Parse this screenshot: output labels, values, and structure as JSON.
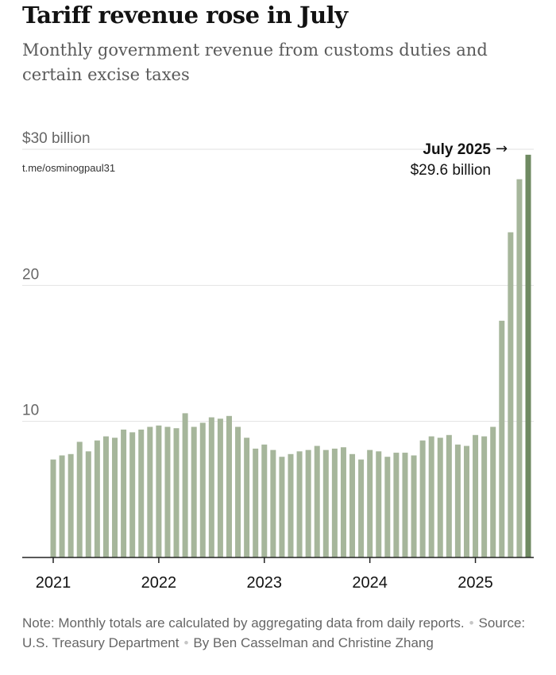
{
  "title": "Tariff revenue rose in July",
  "subtitle": "Monthly government revenue from customs duties and certain excise taxes",
  "watermark": "t.me/osminogpaul31",
  "note": {
    "text": "Note: Monthly totals are calculated by aggregating data from daily reports.",
    "source": "Source: U.S. Treasury Department",
    "byline": "By Ben Casselman and Christine Zhang"
  },
  "colors": {
    "bar": "#a6b69b",
    "highlight": "#6f8a62",
    "grid": "#e2e2e2",
    "axis": "#222222",
    "text": "#121212",
    "muted": "#666666"
  },
  "chart_data": {
    "type": "bar",
    "title": "Tariff revenue rose in July",
    "ylabel": "",
    "xlabel": "",
    "ylim": [
      0,
      30
    ],
    "y_ticks": [
      {
        "value": 30,
        "label": "$30 billion"
      },
      {
        "value": 20,
        "label": "20"
      },
      {
        "value": 10,
        "label": "10"
      }
    ],
    "x_ticks": [
      {
        "index": 0,
        "label": "2021"
      },
      {
        "index": 12,
        "label": "2022"
      },
      {
        "index": 24,
        "label": "2023"
      },
      {
        "index": 36,
        "label": "2024"
      },
      {
        "index": 48,
        "label": "2025"
      }
    ],
    "unit": "billion dollars",
    "categories": [
      "Jan 2021",
      "Feb 2021",
      "Mar 2021",
      "Apr 2021",
      "May 2021",
      "Jun 2021",
      "Jul 2021",
      "Aug 2021",
      "Sep 2021",
      "Oct 2021",
      "Nov 2021",
      "Dec 2021",
      "Jan 2022",
      "Feb 2022",
      "Mar 2022",
      "Apr 2022",
      "May 2022",
      "Jun 2022",
      "Jul 2022",
      "Aug 2022",
      "Sep 2022",
      "Oct 2022",
      "Nov 2022",
      "Dec 2022",
      "Jan 2023",
      "Feb 2023",
      "Mar 2023",
      "Apr 2023",
      "May 2023",
      "Jun 2023",
      "Jul 2023",
      "Aug 2023",
      "Sep 2023",
      "Oct 2023",
      "Nov 2023",
      "Dec 2023",
      "Jan 2024",
      "Feb 2024",
      "Mar 2024",
      "Apr 2024",
      "May 2024",
      "Jun 2024",
      "Jul 2024",
      "Aug 2024",
      "Sep 2024",
      "Oct 2024",
      "Nov 2024",
      "Dec 2024",
      "Jan 2025",
      "Feb 2025",
      "Mar 2025",
      "Apr 2025",
      "May 2025",
      "Jun 2025",
      "Jul 2025"
    ],
    "values": [
      7.2,
      7.5,
      7.6,
      8.5,
      7.8,
      8.6,
      8.9,
      8.8,
      9.4,
      9.2,
      9.4,
      9.6,
      9.7,
      9.6,
      9.5,
      10.6,
      9.6,
      9.9,
      10.3,
      10.2,
      10.4,
      9.6,
      8.8,
      8.0,
      8.3,
      7.9,
      7.4,
      7.6,
      7.8,
      7.9,
      8.2,
      7.9,
      8.0,
      8.1,
      7.6,
      7.2,
      7.9,
      7.8,
      7.4,
      7.7,
      7.7,
      7.5,
      8.6,
      8.9,
      8.8,
      9.0,
      8.3,
      8.2,
      9.0,
      8.9,
      9.6,
      17.4,
      23.9,
      27.8,
      29.6
    ],
    "highlight_index": 54,
    "annotation": {
      "label": "July 2025",
      "value_label": "$29.6 billion",
      "arrow": "→"
    }
  }
}
